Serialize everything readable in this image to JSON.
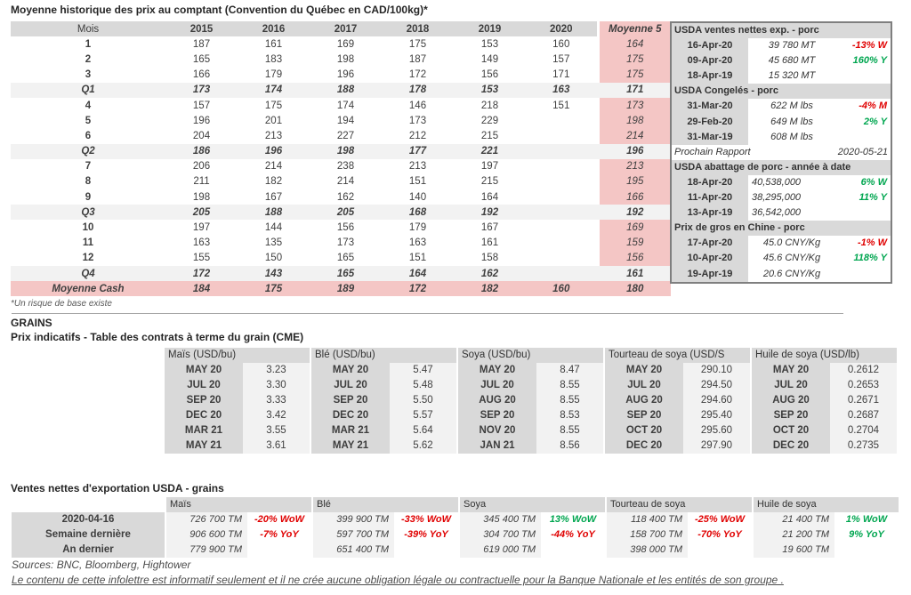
{
  "title": "Moyenne historique des prix au comptant (Convention du Québec en CAD/100kg)*",
  "colors": {
    "accent_pink": "#f4c6c5",
    "header_gray": "#d9d9d9",
    "row_gray": "#f2f2f2",
    "positive_green": "#00a650",
    "negative_red": "#e00000"
  },
  "main_table": {
    "columns": [
      "Mois",
      "2015",
      "2016",
      "2017",
      "2018",
      "2019",
      "2020",
      "Moyenne 5"
    ],
    "rows": [
      {
        "label": "1",
        "type": "month",
        "values": [
          "187",
          "161",
          "169",
          "175",
          "153",
          "160"
        ],
        "avg": "164"
      },
      {
        "label": "2",
        "type": "month",
        "values": [
          "165",
          "183",
          "198",
          "187",
          "149",
          "157"
        ],
        "avg": "175"
      },
      {
        "label": "3",
        "type": "month",
        "values": [
          "166",
          "179",
          "196",
          "172",
          "156",
          "171"
        ],
        "avg": "175"
      },
      {
        "label": "Q1",
        "type": "quarter",
        "values": [
          "173",
          "174",
          "188",
          "178",
          "153",
          "163"
        ],
        "avg": "171"
      },
      {
        "label": "4",
        "type": "month",
        "values": [
          "157",
          "175",
          "174",
          "146",
          "218",
          "151"
        ],
        "avg": "173"
      },
      {
        "label": "5",
        "type": "month",
        "values": [
          "196",
          "201",
          "194",
          "173",
          "229",
          ""
        ],
        "avg": "198"
      },
      {
        "label": "6",
        "type": "month",
        "values": [
          "204",
          "213",
          "227",
          "212",
          "215",
          ""
        ],
        "avg": "214"
      },
      {
        "label": "Q2",
        "type": "quarter",
        "values": [
          "186",
          "196",
          "198",
          "177",
          "221",
          ""
        ],
        "avg": "196"
      },
      {
        "label": "7",
        "type": "month",
        "values": [
          "206",
          "214",
          "238",
          "213",
          "197",
          ""
        ],
        "avg": "213"
      },
      {
        "label": "8",
        "type": "month",
        "values": [
          "211",
          "182",
          "214",
          "151",
          "215",
          ""
        ],
        "avg": "195"
      },
      {
        "label": "9",
        "type": "month",
        "values": [
          "198",
          "167",
          "162",
          "140",
          "164",
          ""
        ],
        "avg": "166"
      },
      {
        "label": "Q3",
        "type": "quarter",
        "values": [
          "205",
          "188",
          "205",
          "168",
          "192",
          ""
        ],
        "avg": "192"
      },
      {
        "label": "10",
        "type": "month",
        "values": [
          "197",
          "144",
          "156",
          "179",
          "167",
          ""
        ],
        "avg": "169"
      },
      {
        "label": "11",
        "type": "month",
        "values": [
          "163",
          "135",
          "173",
          "163",
          "161",
          ""
        ],
        "avg": "159"
      },
      {
        "label": "12",
        "type": "month",
        "values": [
          "155",
          "150",
          "165",
          "151",
          "158",
          ""
        ],
        "avg": "156"
      },
      {
        "label": "Q4",
        "type": "quarter",
        "values": [
          "172",
          "143",
          "165",
          "164",
          "162",
          ""
        ],
        "avg": "161"
      },
      {
        "label": "Moyenne Cash",
        "type": "total",
        "values": [
          "184",
          "175",
          "189",
          "172",
          "182",
          "160"
        ],
        "avg": "180"
      }
    ],
    "footnote": "*Un risque de base existe"
  },
  "usda_panel": {
    "sections": [
      {
        "header": "USDA ventes nettes exp. - porc",
        "rows": [
          {
            "date": "16-Apr-20",
            "value": "39 780  MT",
            "change": "-13% W",
            "dir": "down"
          },
          {
            "date": "09-Apr-20",
            "value": "45 680  MT",
            "change": "160% Y",
            "dir": "up"
          },
          {
            "date": "18-Apr-19",
            "value": "15 320  MT",
            "change": "",
            "dir": ""
          }
        ]
      },
      {
        "header": "USDA Congelés - porc",
        "rows": [
          {
            "date": "31-Mar-20",
            "value": "622 M lbs",
            "change": "-4% M",
            "dir": "down"
          },
          {
            "date": "29-Feb-20",
            "value": "649 M lbs",
            "change": "2% Y",
            "dir": "up"
          },
          {
            "date": "31-Mar-19",
            "value": "608 M lbs",
            "change": "",
            "dir": ""
          }
        ]
      },
      {
        "type": "report",
        "label": "Prochain Rapport",
        "date": "2020-05-21"
      },
      {
        "header": "USDA abattage de porc - année à date",
        "align": "left",
        "rows": [
          {
            "date": "18-Apr-20",
            "value": "40,538,000",
            "change": "6% W",
            "dir": "up"
          },
          {
            "date": "11-Apr-20",
            "value": "38,295,000",
            "change": "11% Y",
            "dir": "up"
          },
          {
            "date": "13-Apr-19",
            "value": "36,542,000",
            "change": "",
            "dir": ""
          }
        ]
      },
      {
        "header": "Prix de gros en Chine - porc",
        "rows": [
          {
            "date": "17-Apr-20",
            "value": "45.0 CNY/Kg",
            "change": "-1% W",
            "dir": "down"
          },
          {
            "date": "10-Apr-20",
            "value": "45.6 CNY/Kg",
            "change": "118% Y",
            "dir": "up"
          },
          {
            "date": "19-Apr-19",
            "value": "20.6 CNY/Kg",
            "change": "",
            "dir": ""
          }
        ]
      }
    ]
  },
  "grains": {
    "section_title": "GRAINS",
    "subtitle": "Prix indicatifs - Table des contrats à terme du grain (CME)",
    "futures": [
      {
        "header": "Maïs (USD/bu)",
        "rows": [
          [
            "MAY 20",
            "3.23"
          ],
          [
            "JUL 20",
            "3.30"
          ],
          [
            "SEP 20",
            "3.33"
          ],
          [
            "DEC 20",
            "3.42"
          ],
          [
            "MAR 21",
            "3.55"
          ],
          [
            "MAY 21",
            "3.61"
          ]
        ]
      },
      {
        "header": "Blé (USD/bu)",
        "rows": [
          [
            "MAY 20",
            "5.47"
          ],
          [
            "JUL 20",
            "5.48"
          ],
          [
            "SEP 20",
            "5.50"
          ],
          [
            "DEC 20",
            "5.57"
          ],
          [
            "MAR 21",
            "5.64"
          ],
          [
            "MAY 21",
            "5.62"
          ]
        ]
      },
      {
        "header": "Soya (USD/bu)",
        "rows": [
          [
            "MAY 20",
            "8.47"
          ],
          [
            "JUL 20",
            "8.55"
          ],
          [
            "AUG 20",
            "8.55"
          ],
          [
            "SEP 20",
            "8.53"
          ],
          [
            "NOV 20",
            "8.55"
          ],
          [
            "JAN 21",
            "8.56"
          ]
        ]
      },
      {
        "header": "Tourteau de soya (USD/S",
        "rows": [
          [
            "MAY 20",
            "290.10"
          ],
          [
            "JUL 20",
            "294.50"
          ],
          [
            "AUG 20",
            "294.60"
          ],
          [
            "SEP 20",
            "295.40"
          ],
          [
            "OCT 20",
            "295.60"
          ],
          [
            "DEC 20",
            "297.90"
          ]
        ]
      },
      {
        "header": "Huile de soya (USD/lb)",
        "rows": [
          [
            "MAY 20",
            "0.2612"
          ],
          [
            "JUL 20",
            "0.2653"
          ],
          [
            "AUG 20",
            "0.2671"
          ],
          [
            "SEP 20",
            "0.2687"
          ],
          [
            "OCT 20",
            "0.2704"
          ],
          [
            "DEC 20",
            "0.2735"
          ]
        ]
      }
    ]
  },
  "exports": {
    "title": "Ventes nettes d'exportation USDA - grains",
    "row_labels": [
      "2020-04-16",
      "Semaine dernière",
      "An dernier"
    ],
    "commodities": [
      {
        "header": "Maïs",
        "rows": [
          {
            "value": "726 700 TM",
            "change": "-20% WoW",
            "dir": "down"
          },
          {
            "value": "906 600 TM",
            "change": "-7% YoY",
            "dir": "down"
          },
          {
            "value": "779 900 TM",
            "change": "",
            "dir": ""
          }
        ]
      },
      {
        "header": "Blé",
        "rows": [
          {
            "value": "399 900 TM",
            "change": "-33% WoW",
            "dir": "down"
          },
          {
            "value": "597 700 TM",
            "change": "-39% YoY",
            "dir": "down"
          },
          {
            "value": "651 400 TM",
            "change": "",
            "dir": ""
          }
        ]
      },
      {
        "header": "Soya",
        "rows": [
          {
            "value": "345 400 TM",
            "change": "13% WoW",
            "dir": "up"
          },
          {
            "value": "304 700 TM",
            "change": "-44% YoY",
            "dir": "down"
          },
          {
            "value": "619 000 TM",
            "change": "",
            "dir": ""
          }
        ]
      },
      {
        "header": "Tourteau de soya",
        "rows": [
          {
            "value": "118 400 TM",
            "change": "-25% WoW",
            "dir": "down"
          },
          {
            "value": "158 700 TM",
            "change": "-70% YoY",
            "dir": "down"
          },
          {
            "value": "398 000 TM",
            "change": "",
            "dir": ""
          }
        ]
      },
      {
        "header": "Huile de soya",
        "rows": [
          {
            "value": "21 400 TM",
            "change": "1% WoW",
            "dir": "up"
          },
          {
            "value": "21 200 TM",
            "change": "9% YoY",
            "dir": "up"
          },
          {
            "value": "19 600 TM",
            "change": "",
            "dir": ""
          }
        ]
      }
    ]
  },
  "footer": {
    "sources": "Sources: BNC, Bloomberg, Hightower",
    "disclaimer": "Le contenu de cette infolettre est informatif seulement et il ne crée aucune obligation légale ou contractuelle pour la Banque Nationale et les entités de son groupe ."
  }
}
